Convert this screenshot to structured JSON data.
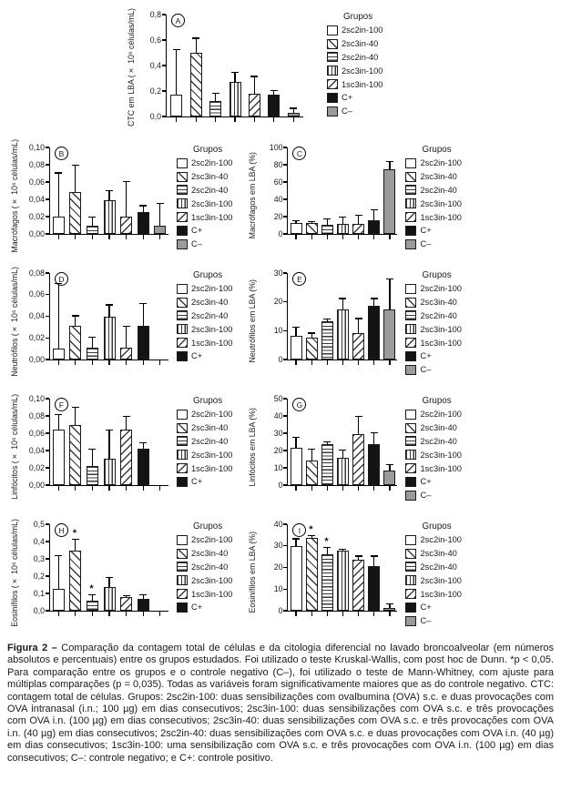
{
  "legend_title": "Grupos",
  "groups": [
    "2sc2in-100",
    "2sc3in-40",
    "2sc2in-40",
    "2sc3in-100",
    "1sc3in-100",
    "C+",
    "C–"
  ],
  "patterns": [
    "blank",
    "diag-back",
    "horiz",
    "vert",
    "diag-fwd",
    "solid-black",
    "solid-gray"
  ],
  "colors": {
    "bar_outline": "#1a1a1a",
    "solid_black": "#141414",
    "solid_gray": "#9b9b9b",
    "text": "#1a1a1a"
  },
  "chart_data": [
    {
      "type": "bar",
      "panel": "A",
      "ylabel": "CTC em LBA (× 10⁶ células/mL)",
      "ymax": 0.8,
      "ylim": [
        0,
        0.8
      ],
      "yticks": [
        "0,0",
        "0,2",
        "0,4",
        "0,6",
        "0,8"
      ],
      "ytick_values": [
        0,
        0.2,
        0.4,
        0.6,
        0.8
      ],
      "categories": [
        "2sc2in-100",
        "2sc3in-40",
        "2sc2in-40",
        "2sc3in-100",
        "1sc3in-100",
        "C+",
        "C–"
      ],
      "values": [
        0.17,
        0.5,
        0.12,
        0.27,
        0.18,
        0.17,
        0.03
      ],
      "errors_up": [
        0.35,
        0.11,
        0.06,
        0.07,
        0.13,
        0.03,
        0.03
      ],
      "sig": [],
      "legend_count": 7
    },
    {
      "type": "bar",
      "panel": "B",
      "ylabel": "Macrófagos (× 10⁶ células/mL)",
      "ymax": 0.1,
      "ylim": [
        0,
        0.1
      ],
      "yticks": [
        "0,00",
        "0,02",
        "0,04",
        "0,06",
        "0,08",
        "0,10"
      ],
      "ytick_values": [
        0,
        0.02,
        0.04,
        0.06,
        0.08,
        0.1
      ],
      "categories": [
        "2sc2in-100",
        "2sc3in-40",
        "2sc2in-40",
        "2sc3in-100",
        "1sc3in-100",
        "C+",
        "C–"
      ],
      "values": [
        0.02,
        0.048,
        0.01,
        0.039,
        0.02,
        0.025,
        0.01
      ],
      "errors_up": [
        0.05,
        0.031,
        0.009,
        0.01,
        0.04,
        0.007,
        0.025
      ],
      "sig": [],
      "legend_count": 7
    },
    {
      "type": "bar",
      "panel": "C",
      "ylabel": "Macrófagos em LBA (%)",
      "ymax": 100,
      "ylim": [
        0,
        100
      ],
      "yticks": [
        "0",
        "20",
        "40",
        "60",
        "80",
        "100"
      ],
      "ytick_values": [
        0,
        20,
        40,
        60,
        80,
        100
      ],
      "categories": [
        "2sc2in-100",
        "2sc3in-40",
        "2sc2in-40",
        "2sc3in-100",
        "1sc3in-100",
        "C+",
        "C–"
      ],
      "values": [
        13,
        13,
        11,
        12,
        12,
        16,
        75
      ],
      "errors_up": [
        1.5,
        1,
        6,
        7,
        9,
        11,
        8
      ],
      "sig": [],
      "legend_count": 7
    },
    {
      "type": "bar",
      "panel": "D",
      "ylabel": "Neutrófilos (× 10⁶ células/mL)",
      "ymax": 0.08,
      "ylim": [
        0,
        0.08
      ],
      "yticks": [
        "0,00",
        "0,02",
        "0,04",
        "0,06",
        "0,08"
      ],
      "ytick_values": [
        0,
        0.02,
        0.04,
        0.06,
        0.08
      ],
      "categories": [
        "2sc2in-100",
        "2sc3in-40",
        "2sc2in-40",
        "2sc3in-100",
        "1sc3in-100",
        "C+",
        "C–"
      ],
      "values": [
        0.01,
        0.031,
        0.011,
        0.04,
        0.011,
        0.031,
        null
      ],
      "errors_up": [
        0.06,
        0.009,
        0.009,
        0.01,
        0.019,
        0.02,
        null
      ],
      "sig": [],
      "legend_count": 6
    },
    {
      "type": "bar",
      "panel": "E",
      "ylabel": "Neutrófilos em LBA (%)",
      "ymax": 30,
      "ylim": [
        0,
        30
      ],
      "yticks": [
        "0",
        "10",
        "20",
        "30"
      ],
      "ytick_values": [
        0,
        10,
        20,
        30
      ],
      "categories": [
        "2sc2in-100",
        "2sc3in-40",
        "2sc2in-40",
        "2sc3in-100",
        "1sc3in-100",
        "C+",
        "C–"
      ],
      "values": [
        8.3,
        7.7,
        13.3,
        17.3,
        9.3,
        18.7,
        17.3
      ],
      "errors_up": [
        2.7,
        1.3,
        0.5,
        3.7,
        4.7,
        2.3,
        10.5
      ],
      "sig": [],
      "legend_count": 7
    },
    {
      "type": "bar",
      "panel": "F",
      "ylabel": "Linfócitos (× 10⁶ células/mL)",
      "ymax": 0.1,
      "ylim": [
        0,
        0.1
      ],
      "yticks": [
        "0,00",
        "0,02",
        "0,04",
        "0,06",
        "0,08",
        "0,10"
      ],
      "ytick_values": [
        0,
        0.02,
        0.04,
        0.06,
        0.08,
        0.1
      ],
      "categories": [
        "2sc2in-100",
        "2sc3in-40",
        "2sc2in-40",
        "2sc3in-100",
        "1sc3in-100",
        "C+",
        "C–"
      ],
      "values": [
        0.064,
        0.069,
        0.022,
        0.031,
        0.064,
        0.042,
        null
      ],
      "errors_up": [
        0.017,
        0.02,
        0.019,
        0.032,
        0.015,
        0.006,
        null
      ],
      "sig": [],
      "legend_count": 6
    },
    {
      "type": "bar",
      "panel": "G",
      "ylabel": "Linfócitos em LBA (%)",
      "ymax": 50,
      "ylim": [
        0,
        50
      ],
      "yticks": [
        "0",
        "10",
        "20",
        "30",
        "40",
        "50"
      ],
      "ytick_values": [
        0,
        10,
        20,
        30,
        40,
        50
      ],
      "categories": [
        "2sc2in-100",
        "2sc3in-40",
        "2sc2in-40",
        "2sc3in-100",
        "1sc3in-100",
        "C+",
        "C–"
      ],
      "values": [
        21.7,
        14,
        23.7,
        16,
        29.7,
        23.7,
        8.3
      ],
      "errors_up": [
        5.6,
        6.3,
        1,
        4,
        9.6,
        6.3,
        3.4
      ],
      "sig": [],
      "legend_count": 7
    },
    {
      "type": "bar",
      "panel": "H",
      "ylabel": "Eosinífilos (× 10⁶ células/mL)",
      "ymax": 0.5,
      "ylim": [
        0,
        0.5
      ],
      "yticks": [
        "0,0",
        "0,1",
        "0,2",
        "0,3",
        "0,4",
        "0,5"
      ],
      "ytick_values": [
        0,
        0.1,
        0.2,
        0.3,
        0.4,
        0.5
      ],
      "categories": [
        "2sc2in-100",
        "2sc3in-40",
        "2sc2in-40",
        "2sc3in-100",
        "1sc3in-100",
        "C+",
        "C–"
      ],
      "values": [
        0.125,
        0.35,
        0.06,
        0.135,
        0.08,
        0.07,
        null
      ],
      "errors_up": [
        0.19,
        0.06,
        0.03,
        0.055,
        0.005,
        0.02,
        null
      ],
      "sig": [
        1,
        2
      ],
      "legend_count": 6
    },
    {
      "type": "bar",
      "panel": "I",
      "ylabel": "Eosinífilos em LBA (%)",
      "ymax": 40,
      "ylim": [
        0,
        40
      ],
      "yticks": [
        "0",
        "10",
        "20",
        "30",
        "40"
      ],
      "ytick_values": [
        0,
        10,
        20,
        30,
        40
      ],
      "categories": [
        "2sc2in-100",
        "2sc3in-40",
        "2sc2in-40",
        "2sc3in-100",
        "1sc3in-100",
        "C+",
        "C–"
      ],
      "values": [
        30,
        33.7,
        26,
        27.7,
        23.5,
        20.5,
        1.3
      ],
      "errors_up": [
        3,
        0.8,
        3,
        0.4,
        1.5,
        4.5,
        1.7
      ],
      "sig": [
        1,
        2
      ],
      "legend_count": 7
    }
  ],
  "figure": {
    "caption_label": "Figura 2 – ",
    "caption_body": "Comparação da contagem total de células e da citologia diferencial no lavado broncoalveolar (em números absolutos e percentuais) entre os grupos estudados. Foi utilizado o teste Kruskal-Wallis, com post hoc de Dunn. *p < 0,05. Para comparação entre os grupos e o controle negativo (C–), foi utilizado o teste de Mann-Whitney, com ajuste para múltiplas comparações (p = 0,035). Todas as variáveis foram significativamente maiores que as do controle negativo. CTC: contagem total de células. Grupos: 2sc2in-100: duas sensibilizações com ovalbumina (OVA) s.c. e duas provocações com OVA intranasal (i.n.; 100 µg) em dias consecutivos; 2sc3in-100: duas sensibilizações com OVA s.c. e três provocações com OVA i.n. (100 µg) em dias consecutivos; 2sc3in-40: duas sensibilizações com OVA s.c. e três provocações com OVA i.n. (40 µg) em dias consecutivos; 2sc2in-40: duas sensibilizações com OVA s.c. e duas provocações com OVA i.n. (40 µg) em dias consecutivos; 1sc3in-100: uma sensibilização com OVA s.c. e três provocações com OVA i.n. (100 µg) em dias consecutivos; C–: controle negativo; e C+: controle positivo."
  }
}
